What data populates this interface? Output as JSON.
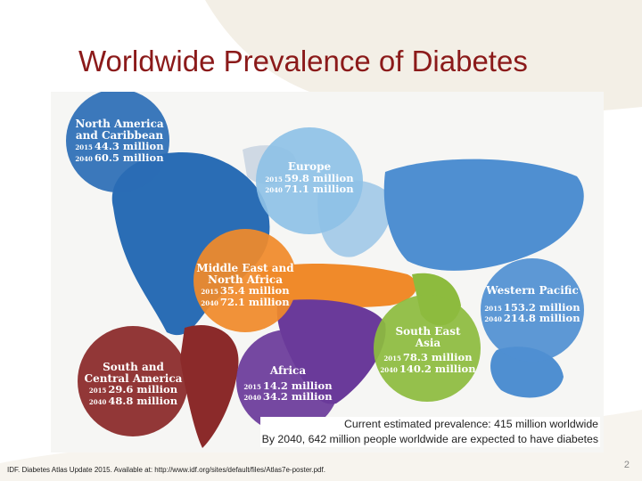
{
  "slide": {
    "title": "Worldwide Prevalence of Diabetes",
    "page_number": "2",
    "citation": "IDF. Diabetes Atlas Update 2015. Available at: http://www.idf.org/sites/default/files/Atlas7e-poster.pdf.",
    "caption_line1": "Current estimated prevalence: 415 million worldwide",
    "caption_line2": "By 2040, 642 million people worldwide are expected to have diabetes"
  },
  "regions": [
    {
      "key": "north-america",
      "name_line1": "North America",
      "name_line2": "and Caribbean",
      "year_a": "2015",
      "value_a": "44.3 million",
      "year_b": "2040",
      "value_b": "60.5 million",
      "color": "#2a6db5"
    },
    {
      "key": "europe",
      "name_line1": "Europe",
      "name_line2": "",
      "year_a": "2015",
      "value_a": "59.8 million",
      "year_b": "2040",
      "value_b": "71.1 million",
      "color": "#8ec1e6"
    },
    {
      "key": "middle-east",
      "name_line1": "Middle East and",
      "name_line2": "North Africa",
      "year_a": "2015",
      "value_a": "35.4 million",
      "year_b": "2040",
      "value_b": "72.1 million",
      "color": "#f08a2a"
    },
    {
      "key": "western-pacific",
      "name_line1": "Western Pacific",
      "name_line2": "",
      "year_a": "2015",
      "value_a": "153.2 million",
      "year_b": "2040",
      "value_b": "214.8 million",
      "color": "#4f8fd1"
    },
    {
      "key": "south-east-asia",
      "name_line1": "South East",
      "name_line2": "Asia",
      "year_a": "2015",
      "value_a": "78.3 million",
      "year_b": "2040",
      "value_b": "140.2 million",
      "color": "#8dbb3e"
    },
    {
      "key": "south-america",
      "name_line1": "South and",
      "name_line2": "Central America",
      "year_a": "2015",
      "value_a": "29.6 million",
      "year_b": "2040",
      "value_b": "48.8 million",
      "color": "#8b2a2a"
    },
    {
      "key": "africa",
      "name_line1": "Africa",
      "name_line2": "",
      "year_a": "2015",
      "value_a": "14.2 million",
      "year_b": "2040",
      "value_b": "34.2 million",
      "color": "#6a3a9a"
    }
  ]
}
